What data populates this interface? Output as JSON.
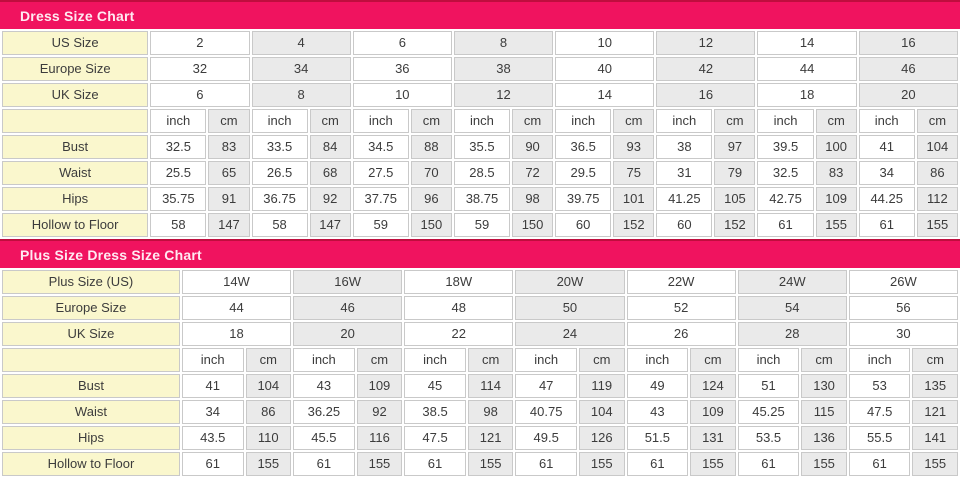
{
  "colors": {
    "header_bar_bg": "#f0135f",
    "header_bar_top_line": "#bf0d3e",
    "header_text": "#ffeaf2",
    "label_cell_bg": "#faf7cd",
    "alt_cell_bg": "#eaeaea",
    "cell_border": "#c9c9c9",
    "cell_text": "#3c3c3c"
  },
  "units": {
    "inch": "inch",
    "cm": "cm"
  },
  "chart_data": [
    {
      "type": "table",
      "title": "Dress Size Chart",
      "id_rows": [
        {
          "label": "US Size",
          "values": [
            "2",
            "4",
            "6",
            "8",
            "10",
            "12",
            "14",
            "16"
          ]
        },
        {
          "label": "Europe Size",
          "values": [
            "32",
            "34",
            "36",
            "38",
            "40",
            "42",
            "44",
            "46"
          ]
        },
        {
          "label": "UK Size",
          "values": [
            "6",
            "8",
            "10",
            "12",
            "14",
            "16",
            "18",
            "20"
          ]
        }
      ],
      "measure_rows": [
        {
          "label": "Bust",
          "inch": [
            "32.5",
            "33.5",
            "34.5",
            "35.5",
            "36.5",
            "38",
            "39.5",
            "41"
          ],
          "cm": [
            "83",
            "84",
            "88",
            "90",
            "93",
            "97",
            "100",
            "104"
          ]
        },
        {
          "label": "Waist",
          "inch": [
            "25.5",
            "26.5",
            "27.5",
            "28.5",
            "29.5",
            "31",
            "32.5",
            "34"
          ],
          "cm": [
            "65",
            "68",
            "70",
            "72",
            "75",
            "79",
            "83",
            "86"
          ]
        },
        {
          "label": "Hips",
          "inch": [
            "35.75",
            "36.75",
            "37.75",
            "38.75",
            "39.75",
            "41.25",
            "42.75",
            "44.25"
          ],
          "cm": [
            "91",
            "92",
            "96",
            "98",
            "101",
            "105",
            "109",
            "112"
          ]
        },
        {
          "label": "Hollow to Floor",
          "inch": [
            "58",
            "58",
            "59",
            "59",
            "60",
            "60",
            "61",
            "61"
          ],
          "cm": [
            "147",
            "147",
            "150",
            "150",
            "152",
            "152",
            "155",
            "155"
          ]
        }
      ]
    },
    {
      "type": "table",
      "title": "Plus Size Dress Size Chart",
      "id_rows": [
        {
          "label": "Plus Size (US)",
          "values": [
            "14W",
            "16W",
            "18W",
            "20W",
            "22W",
            "24W",
            "26W"
          ]
        },
        {
          "label": "Europe Size",
          "values": [
            "44",
            "46",
            "48",
            "50",
            "52",
            "54",
            "56"
          ]
        },
        {
          "label": "UK Size",
          "values": [
            "18",
            "20",
            "22",
            "24",
            "26",
            "28",
            "30"
          ]
        }
      ],
      "measure_rows": [
        {
          "label": "Bust",
          "inch": [
            "41",
            "43",
            "45",
            "47",
            "49",
            "51",
            "53"
          ],
          "cm": [
            "104",
            "109",
            "114",
            "119",
            "124",
            "130",
            "135"
          ]
        },
        {
          "label": "Waist",
          "inch": [
            "34",
            "36.25",
            "38.5",
            "40.75",
            "43",
            "45.25",
            "47.5"
          ],
          "cm": [
            "86",
            "92",
            "98",
            "104",
            "109",
            "115",
            "121"
          ]
        },
        {
          "label": "Hips",
          "inch": [
            "43.5",
            "45.5",
            "47.5",
            "49.5",
            "51.5",
            "53.5",
            "55.5"
          ],
          "cm": [
            "110",
            "116",
            "121",
            "126",
            "131",
            "136",
            "141"
          ]
        },
        {
          "label": "Hollow to Floor",
          "inch": [
            "61",
            "61",
            "61",
            "61",
            "61",
            "61",
            "61"
          ],
          "cm": [
            "155",
            "155",
            "155",
            "155",
            "155",
            "155",
            "155"
          ]
        }
      ]
    }
  ]
}
